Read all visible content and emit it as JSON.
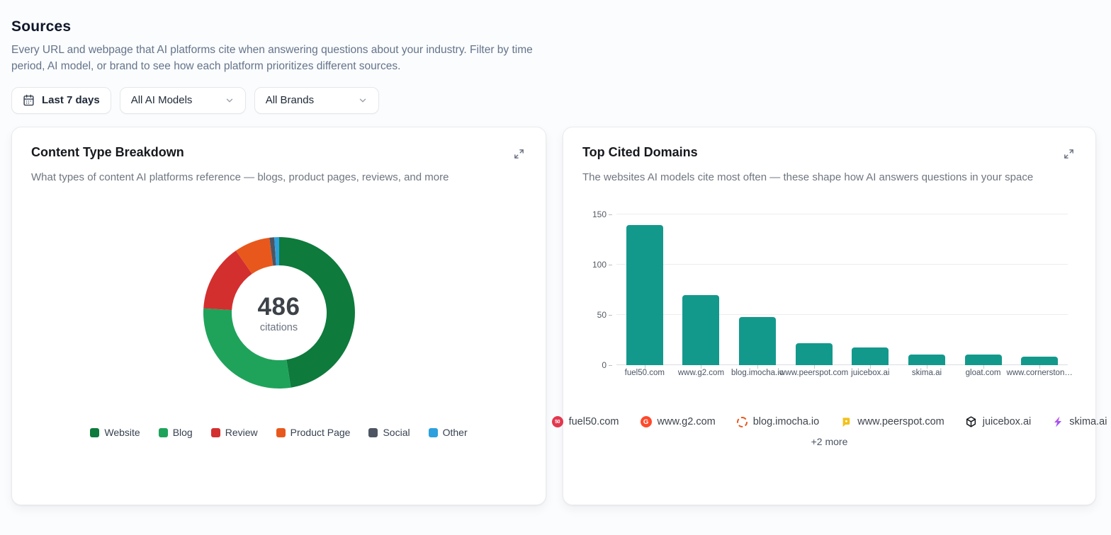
{
  "page": {
    "title": "Sources",
    "description": "Every URL and webpage that AI platforms cite when answering questions about your industry. Filter by time period, AI model, or brand to see how each platform prioritizes different sources."
  },
  "filters": {
    "date_range": {
      "label": "Last 7 days",
      "icon": "calendar-icon"
    },
    "ai_model": {
      "value": "All AI Models",
      "icon": "chevron-down-icon"
    },
    "brand": {
      "value": "All Brands",
      "icon": "chevron-down-icon"
    }
  },
  "content_type_card": {
    "title": "Content Type Breakdown",
    "subtitle": "What types of content AI platforms reference — blogs, product pages, reviews, and more",
    "center_value": "486",
    "center_label": "citations",
    "expand_icon": "expand-icon"
  },
  "top_domains_card": {
    "title": "Top Cited Domains",
    "subtitle": "The websites AI models cite most often — these shape how AI answers questions in your space",
    "expand_icon": "expand-icon",
    "footer_domains": [
      {
        "name": "fuel50.com",
        "icon": "fuel50-favicon"
      },
      {
        "name": "www.g2.com",
        "icon": "g2-favicon"
      },
      {
        "name": "blog.imocha.io",
        "icon": "imocha-favicon"
      },
      {
        "name": "www.peerspot.com",
        "icon": "peerspot-favicon"
      },
      {
        "name": "juicebox.ai",
        "icon": "juicebox-favicon"
      },
      {
        "name": "skima.ai",
        "icon": "skima-favicon"
      }
    ],
    "more_label": "+2 more"
  },
  "chart_data": [
    {
      "type": "pie",
      "subtype": "donut",
      "title": "Content Type Breakdown",
      "center_total": 486,
      "center_label": "citations",
      "legend_position": "bottom",
      "segments": [
        {
          "label": "Website",
          "value": 231,
          "color": "#0e7a3c"
        },
        {
          "label": "Blog",
          "value": 138,
          "color": "#1fa35b"
        },
        {
          "label": "Review",
          "value": 70,
          "color": "#d32f2f"
        },
        {
          "label": "Product Page",
          "value": 37,
          "color": "#e8581c"
        },
        {
          "label": "Social",
          "value": 5,
          "color": "#4d5562"
        },
        {
          "label": "Other",
          "value": 5,
          "color": "#2da0dd"
        }
      ]
    },
    {
      "type": "bar",
      "title": "Top Cited Domains",
      "categories": [
        "fuel50.com",
        "www.g2.com",
        "blog.imocha.io",
        "www.peerspot.com",
        "juicebox.ai",
        "skima.ai",
        "gloat.com",
        "www.cornerston…"
      ],
      "values": [
        140,
        70,
        48,
        22,
        18,
        11,
        11,
        9
      ],
      "bar_color": "#13998c",
      "xlabel": "",
      "ylabel": "",
      "ylim": [
        0,
        150
      ],
      "yticks": [
        0,
        50,
        100,
        150
      ],
      "grid": true,
      "legend_position": "none"
    }
  ]
}
